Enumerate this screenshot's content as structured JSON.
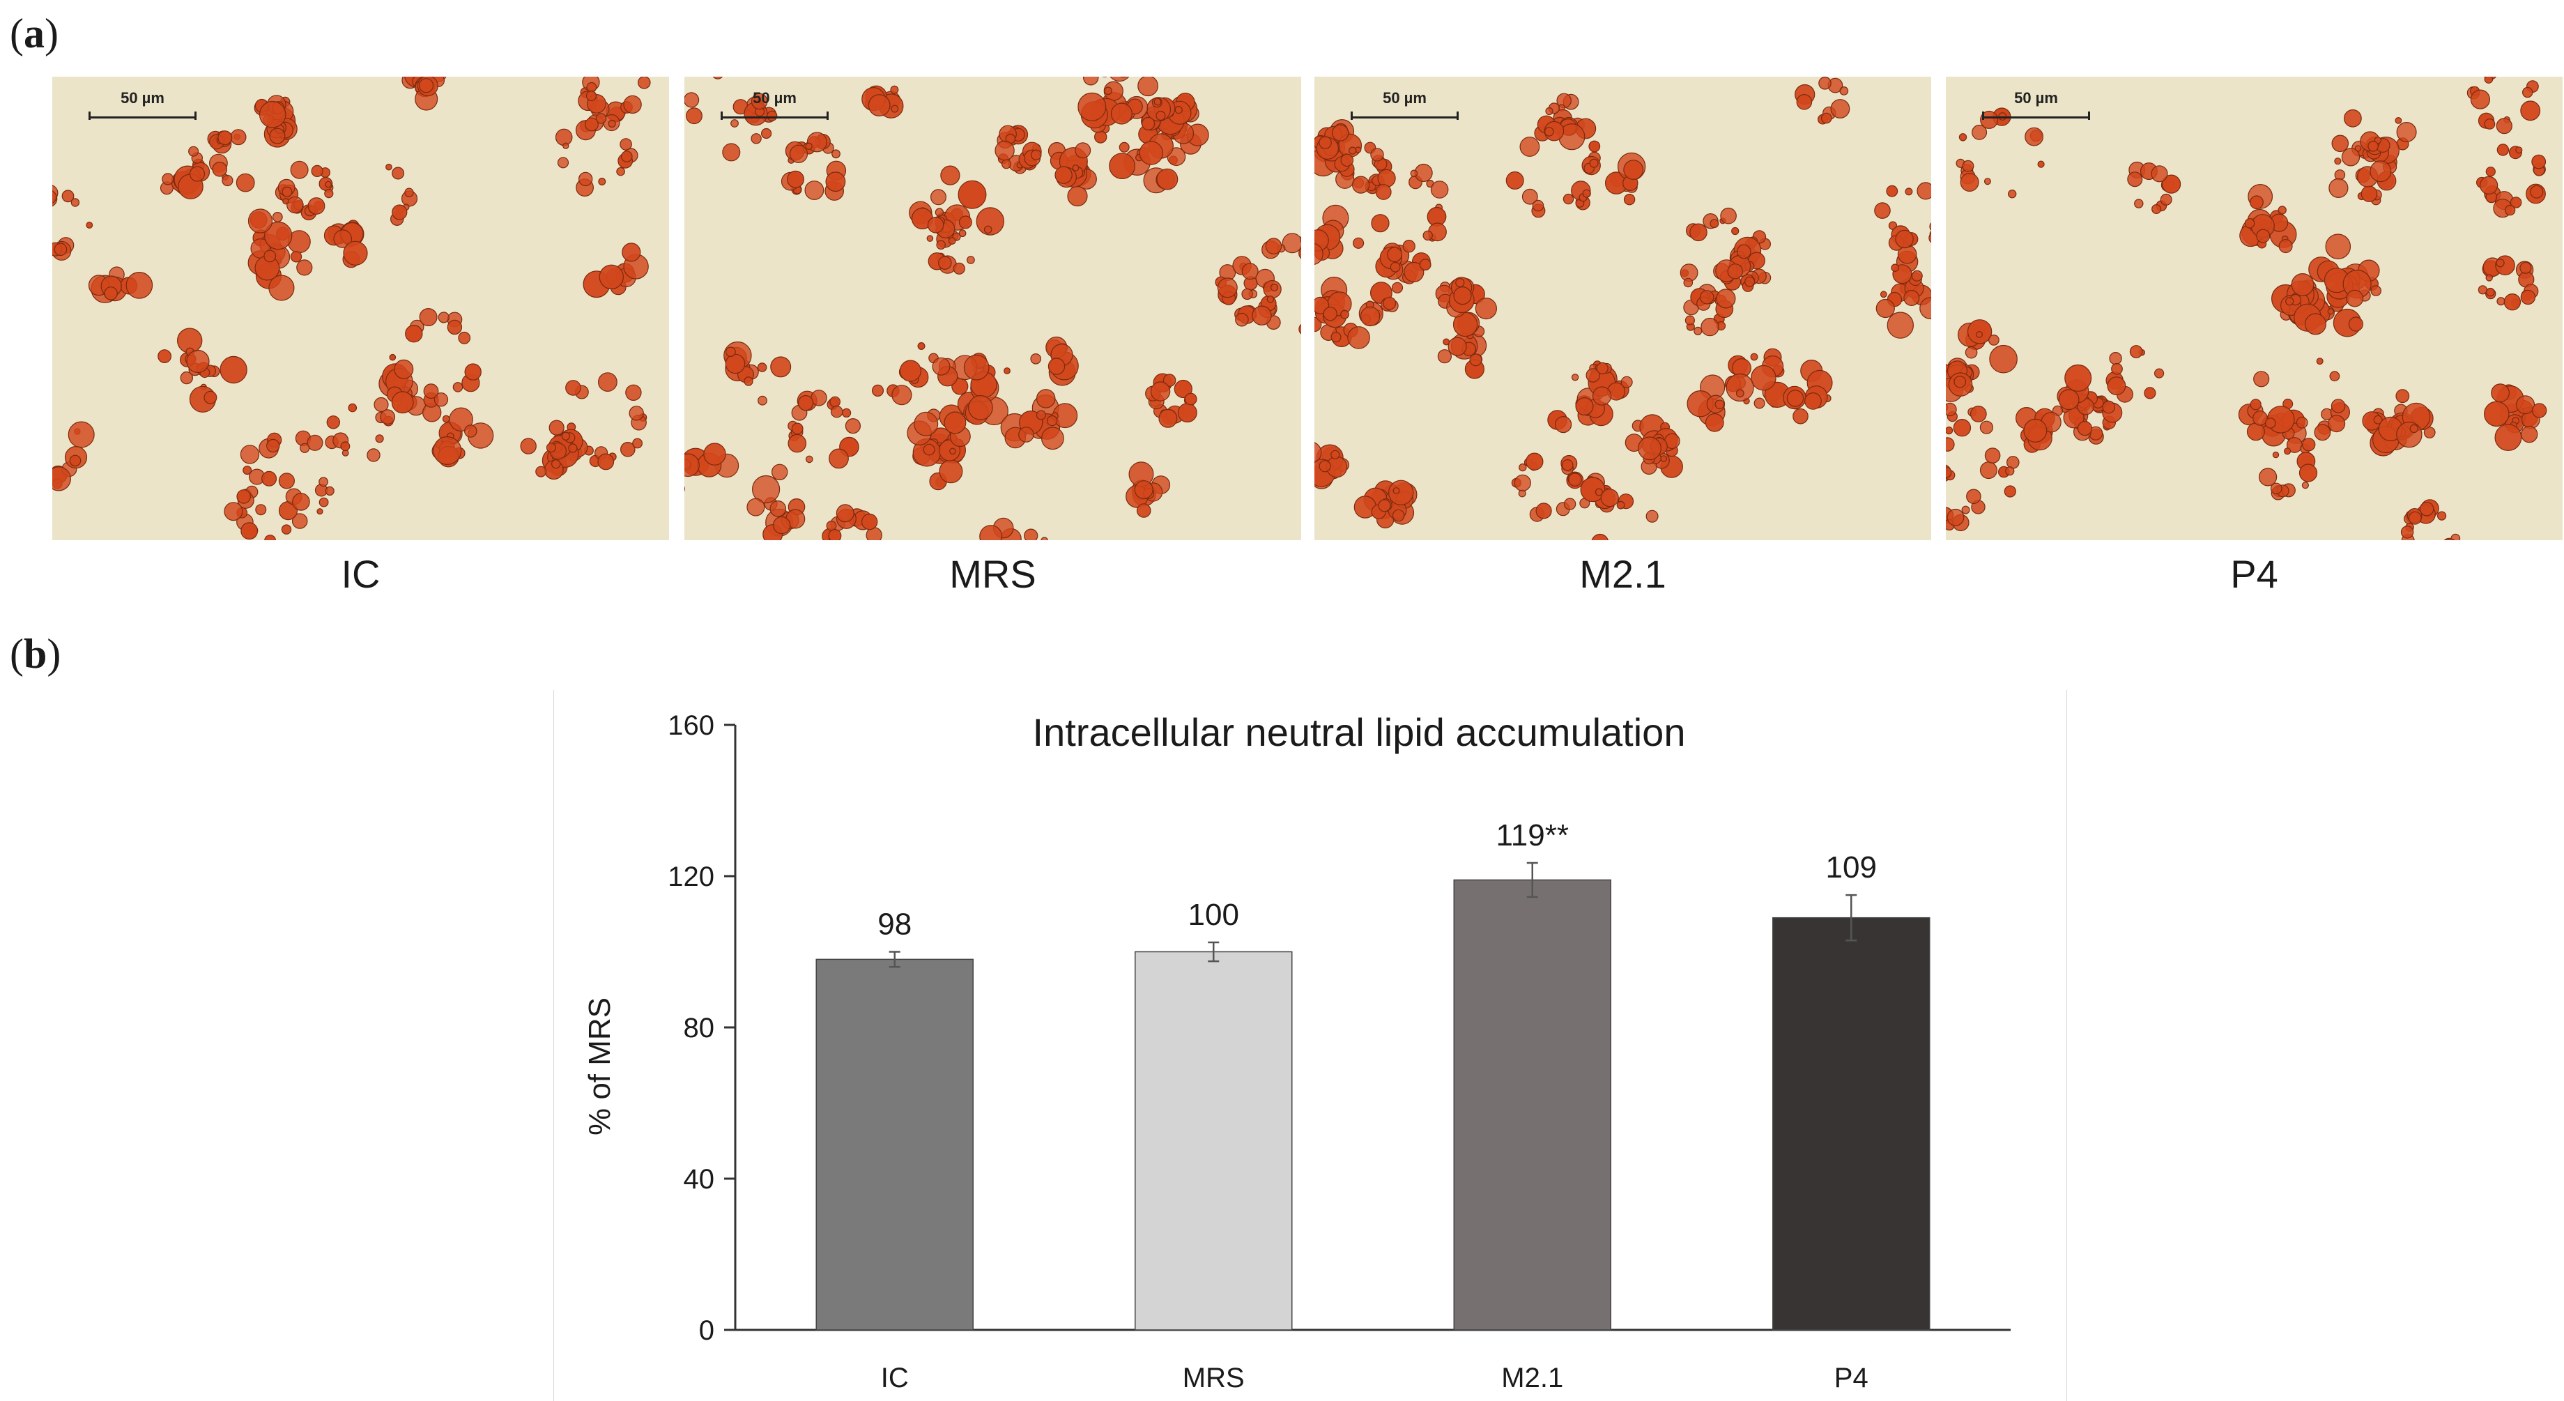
{
  "panels": {
    "a_label": "a",
    "b_label": "b"
  },
  "micrographs": [
    {
      "caption": "IC",
      "scale_text": "50 µm"
    },
    {
      "caption": "MRS",
      "scale_text": "50 µm"
    },
    {
      "caption": "M2.1",
      "scale_text": "50 µm"
    },
    {
      "caption": "P4",
      "scale_text": "50 µm"
    }
  ],
  "colors": {
    "IC": "#7a7a7a",
    "MRS": "#d4d4d4",
    "M2.1": "#767070",
    "P4": "#383434",
    "stain": "#d2471c",
    "background": "#ece4c8"
  },
  "chart_data": {
    "type": "bar",
    "title": "Intracellular neutral lipid accumulation",
    "xlabel": "",
    "ylabel": "% of MRS",
    "categories": [
      "IC",
      "MRS",
      "M2.1",
      "P4"
    ],
    "values": [
      98,
      100,
      119,
      109
    ],
    "errors": [
      2,
      2.5,
      4.5,
      6
    ],
    "data_labels": [
      "98",
      "100",
      "119**",
      "109"
    ],
    "ylim": [
      0,
      160
    ],
    "yticks": [
      0,
      40,
      80,
      120,
      160
    ],
    "grid": false,
    "legend": "none"
  }
}
